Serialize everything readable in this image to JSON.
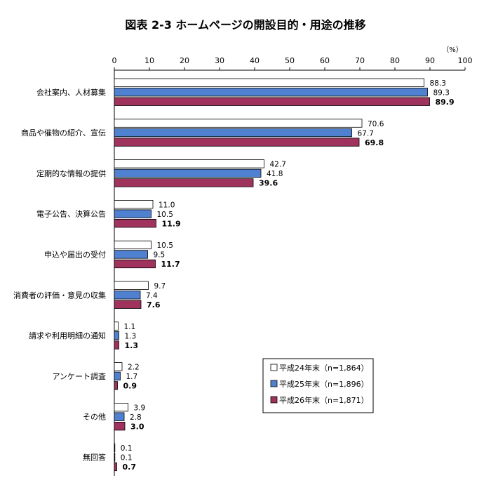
{
  "chart_data": {
    "type": "bar",
    "orientation": "horizontal",
    "title": "図表 2-3 ホームページの開設目的・用途の推移",
    "unit_label": "（%）",
    "xlim": [
      0,
      100
    ],
    "ticks": [
      "0",
      "10",
      "20",
      "30",
      "40",
      "50",
      "60",
      "70",
      "80",
      "90",
      "100"
    ],
    "grid": false,
    "legend_position": "bottom-right",
    "categories": [
      "会社案内、人材募集",
      "商品や催物の紹介、宣伝",
      "定期的な情報の提供",
      "電子公告、決算公告",
      "申込や届出の受付",
      "消費者の評価・意見の収集",
      "請求や利用明細の通知",
      "アンケート調査",
      "その他",
      "無回答"
    ],
    "series": [
      {
        "name": "平成24年末（n=1,864）",
        "color": "#ffffff",
        "values": [
          88.3,
          70.6,
          42.7,
          11.0,
          10.5,
          9.7,
          1.1,
          2.2,
          3.9,
          0.1
        ],
        "labels": [
          "88.3",
          "70.6",
          "42.7",
          "11.0",
          "10.5",
          "9.7",
          "1.1",
          "2.2",
          "3.9",
          "0.1"
        ]
      },
      {
        "name": "平成25年末（n=1,896）",
        "color": "#4f81d0",
        "values": [
          89.3,
          67.7,
          41.8,
          10.5,
          9.5,
          7.4,
          1.3,
          1.7,
          2.8,
          0.1
        ],
        "labels": [
          "89.3",
          "67.7",
          "41.8",
          "10.5",
          "9.5",
          "7.4",
          "1.3",
          "1.7",
          "2.8",
          "0.1"
        ]
      },
      {
        "name": "平成26年末（n=1,871）",
        "color": "#a0335e",
        "values": [
          89.9,
          69.8,
          39.6,
          11.9,
          11.7,
          7.6,
          1.3,
          0.9,
          3.0,
          0.7
        ],
        "labels": [
          "89.9",
          "69.8",
          "39.6",
          "11.9",
          "11.7",
          "7.6",
          "1.3",
          "0.9",
          "3.0",
          "0.7"
        ]
      }
    ]
  }
}
